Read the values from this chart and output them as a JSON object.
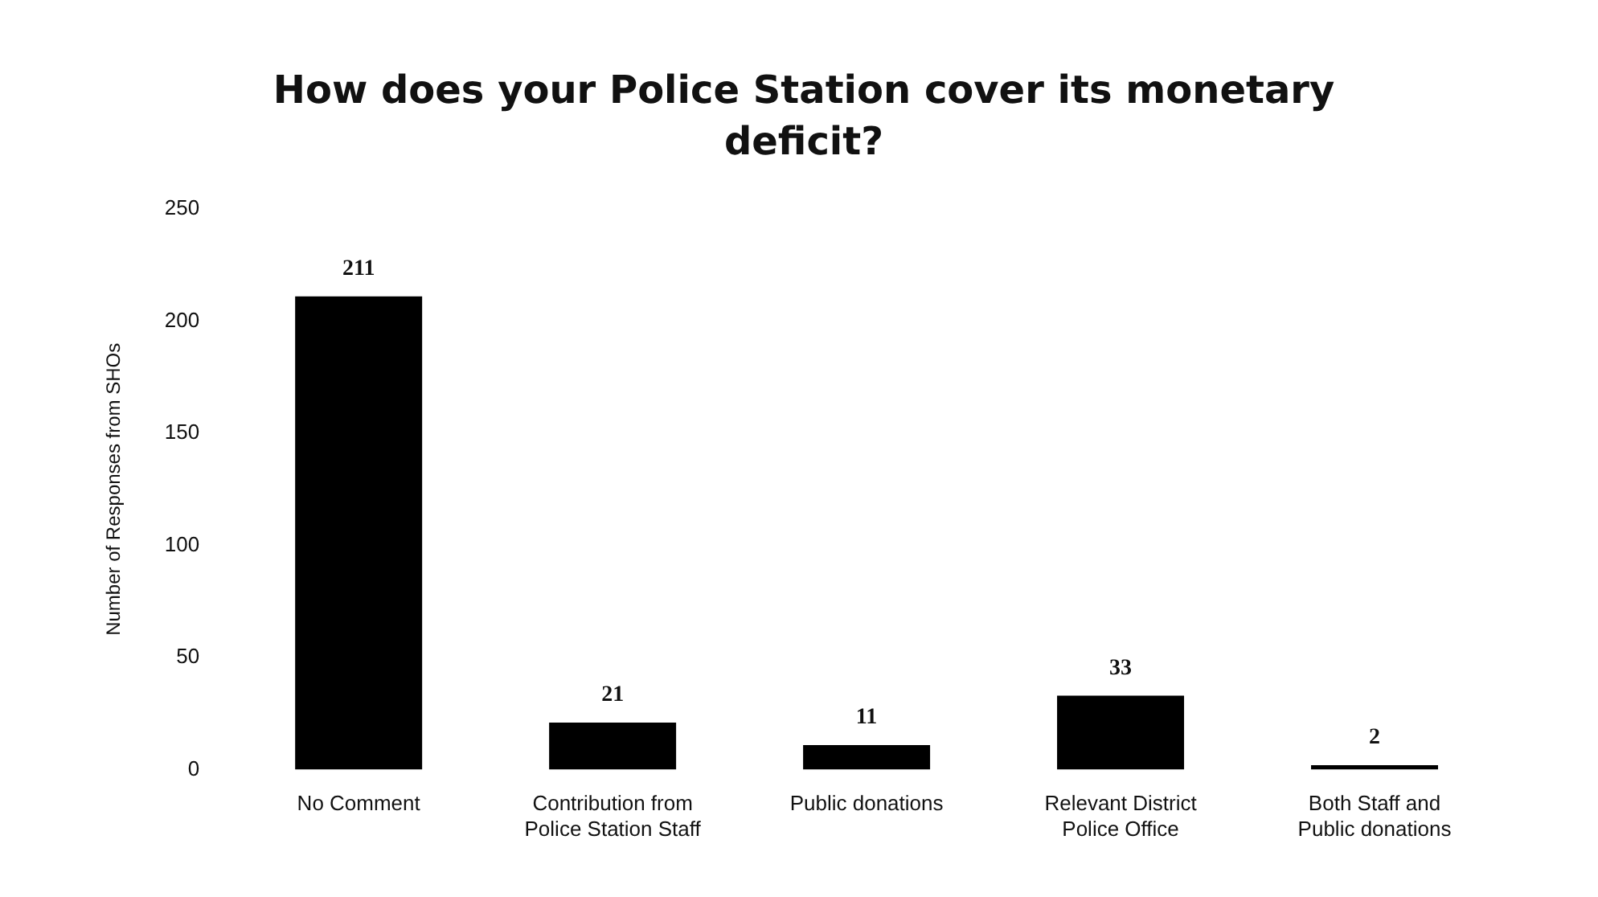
{
  "chart_data": {
    "type": "bar",
    "title": "How does your Police Station cover its monetary deficit?",
    "ylabel": "Number of Responses from SHOs",
    "categories": [
      "No Comment",
      "Contribution from Police Station Staff",
      "Public donations",
      "Relevant District Police Office",
      "Both Staff and Public donations"
    ],
    "values": [
      211,
      21,
      11,
      33,
      2
    ],
    "color": "#000000",
    "ylim": [
      0,
      250
    ],
    "yticks": [
      0,
      50,
      100,
      150,
      200,
      250
    ],
    "data_labels": true,
    "grid": false,
    "legend": false
  }
}
